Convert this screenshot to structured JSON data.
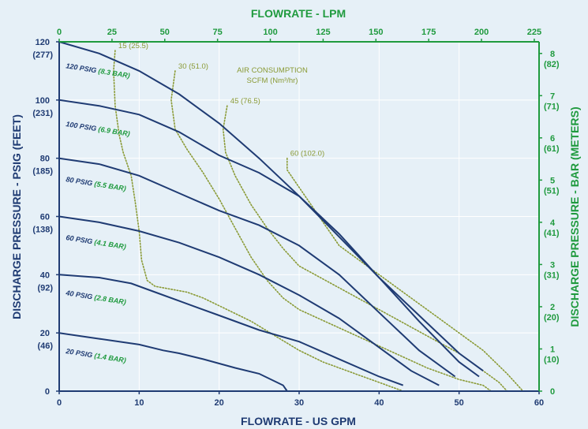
{
  "colors": {
    "background": "#e6f0f7",
    "primary_axis": "#1f3b73",
    "secondary_axis": "#1f9a3e",
    "air_curve": "#8a9a35",
    "grid": "#ffffff"
  },
  "chart_data": {
    "type": "line",
    "title": "",
    "xlabel": "FLOWRATE - US GPM",
    "ylabel": "DISCHARGE PRESSURE - PSIG (FEET)",
    "x2label": "FLOWRATE - LPM",
    "y2label": "DISCHARGE PRESSURE - BAR (METERS)",
    "xlim": [
      0,
      60
    ],
    "ylim": [
      0,
      120
    ],
    "grid": true,
    "x_ticks": [
      "0",
      "10",
      "20",
      "30",
      "40",
      "50",
      "60"
    ],
    "x_tick_values": [
      0,
      10,
      20,
      30,
      40,
      50,
      60
    ],
    "x2_ticks": [
      "0",
      "25",
      "50",
      "75",
      "100",
      "125",
      "150",
      "175",
      "200",
      "225"
    ],
    "x2_tick_values_gpm": [
      0,
      6.6,
      13.2,
      19.8,
      26.4,
      33.0,
      39.6,
      46.2,
      52.8,
      59.4
    ],
    "y_ticks": [
      {
        "value": 0,
        "main": "0",
        "sub": ""
      },
      {
        "value": 20,
        "main": "20",
        "sub": "(46)"
      },
      {
        "value": 40,
        "main": "40",
        "sub": "(92)"
      },
      {
        "value": 60,
        "main": "60",
        "sub": "(138)"
      },
      {
        "value": 80,
        "main": "80",
        "sub": "(185)"
      },
      {
        "value": 100,
        "main": "100",
        "sub": "(231)"
      },
      {
        "value": 120,
        "main": "120",
        "sub": "(277)"
      }
    ],
    "y2_ticks": [
      {
        "value_psi": 0,
        "main": "0",
        "sub": ""
      },
      {
        "value_psi": 14.5,
        "main": "1",
        "sub": "(10)"
      },
      {
        "value_psi": 29.0,
        "main": "2",
        "sub": "(20)"
      },
      {
        "value_psi": 43.5,
        "main": "3",
        "sub": "(31)"
      },
      {
        "value_psi": 58.0,
        "main": "4",
        "sub": "(41)"
      },
      {
        "value_psi": 72.5,
        "main": "5",
        "sub": "(51)"
      },
      {
        "value_psi": 87.0,
        "main": "6",
        "sub": "(61)"
      },
      {
        "value_psi": 101.5,
        "main": "7",
        "sub": "(71)"
      },
      {
        "value_psi": 116.0,
        "main": "8",
        "sub": "(82)"
      }
    ],
    "performance_curves": [
      {
        "psig_label": "120 PSIG",
        "bar_label": "(8.3 BAR)",
        "label_x": 0.8,
        "label_y": 111,
        "points": [
          [
            0,
            120
          ],
          [
            5,
            116
          ],
          [
            10,
            110
          ],
          [
            15,
            102
          ],
          [
            20,
            92
          ],
          [
            25,
            80
          ],
          [
            30,
            67
          ],
          [
            35,
            53
          ],
          [
            40,
            39
          ],
          [
            45,
            26
          ],
          [
            50,
            13
          ],
          [
            53,
            7
          ]
        ]
      },
      {
        "psig_label": "100 PSIG",
        "bar_label": "(6.9 BAR)",
        "label_x": 0.8,
        "label_y": 91,
        "points": [
          [
            0,
            100
          ],
          [
            5,
            98
          ],
          [
            10,
            95
          ],
          [
            15,
            89
          ],
          [
            20,
            81
          ],
          [
            25,
            75
          ],
          [
            30,
            67
          ],
          [
            35,
            54
          ],
          [
            40,
            39
          ],
          [
            45,
            24
          ],
          [
            50,
            10
          ],
          [
            52.5,
            5
          ]
        ]
      },
      {
        "psig_label": "80 PSIG",
        "bar_label": "(5.5 BAR)",
        "label_x": 0.8,
        "label_y": 72,
        "points": [
          [
            0,
            80
          ],
          [
            5,
            78
          ],
          [
            10,
            74
          ],
          [
            15,
            68
          ],
          [
            20,
            62
          ],
          [
            25,
            57
          ],
          [
            30,
            50
          ],
          [
            35,
            40
          ],
          [
            40,
            27
          ],
          [
            45,
            14
          ],
          [
            49.5,
            5
          ]
        ]
      },
      {
        "psig_label": "60 PSIG",
        "bar_label": "(4.1 BAR)",
        "label_x": 0.8,
        "label_y": 52,
        "points": [
          [
            0,
            60
          ],
          [
            5,
            58
          ],
          [
            10,
            55
          ],
          [
            15,
            51
          ],
          [
            20,
            46
          ],
          [
            25,
            40
          ],
          [
            30,
            33
          ],
          [
            35,
            25
          ],
          [
            40,
            15
          ],
          [
            44,
            7
          ],
          [
            47.5,
            2
          ]
        ]
      },
      {
        "psig_label": "40 PSIG",
        "bar_label": "(2.8 BAR)",
        "label_x": 0.8,
        "label_y": 33,
        "points": [
          [
            0,
            40
          ],
          [
            5,
            39
          ],
          [
            9,
            37
          ],
          [
            12,
            34
          ],
          [
            15,
            31
          ],
          [
            20,
            26
          ],
          [
            25,
            21
          ],
          [
            30,
            17
          ],
          [
            35,
            11
          ],
          [
            40,
            5
          ],
          [
            43,
            2
          ]
        ]
      },
      {
        "psig_label": "20 PSIG",
        "bar_label": "(1.4 BAR)",
        "label_x": 0.8,
        "label_y": 13,
        "points": [
          [
            0,
            20
          ],
          [
            5,
            18
          ],
          [
            10,
            16
          ],
          [
            13,
            14
          ],
          [
            15,
            13
          ],
          [
            18,
            11
          ],
          [
            22,
            8
          ],
          [
            25,
            6
          ],
          [
            28,
            2
          ],
          [
            28.5,
            0
          ]
        ]
      }
    ],
    "air_consumption": {
      "title_lines": [
        "AIR CONSUMPTION",
        "SCFM (Nm³/hr)"
      ],
      "curves": [
        {
          "label": "15 (25.5)",
          "points": [
            [
              7,
              117
            ],
            [
              6.8,
              110
            ],
            [
              7,
              98
            ],
            [
              7.5,
              88
            ],
            [
              8,
              82
            ],
            [
              9,
              74
            ],
            [
              9.5,
              65
            ],
            [
              10,
              55
            ],
            [
              10.3,
              45
            ],
            [
              11,
              38
            ],
            [
              12,
              36
            ],
            [
              14,
              35
            ],
            [
              16,
              34
            ],
            [
              18,
              32
            ],
            [
              21,
              28
            ],
            [
              24,
              24
            ],
            [
              27,
              19
            ],
            [
              30,
              14
            ],
            [
              33,
              10
            ],
            [
              37,
              6
            ],
            [
              40,
              3
            ],
            [
              42,
              1
            ],
            [
              43,
              0
            ]
          ]
        },
        {
          "label": "30 (51.0)",
          "points": [
            [
              14.5,
              110
            ],
            [
              14,
              100
            ],
            [
              14.5,
              90
            ],
            [
              16,
              83
            ],
            [
              18,
              75
            ],
            [
              20,
              66
            ],
            [
              22,
              56
            ],
            [
              24,
              46
            ],
            [
              26,
              38
            ],
            [
              28,
              32
            ],
            [
              30,
              28
            ],
            [
              34,
              23
            ],
            [
              38,
              18
            ],
            [
              42,
              13
            ],
            [
              46,
              8
            ],
            [
              50,
              4
            ],
            [
              53,
              2
            ],
            [
              54,
              0
            ]
          ]
        },
        {
          "label": "45 (76.5)",
          "points": [
            [
              21,
              98
            ],
            [
              20.5,
              90
            ],
            [
              20.8,
              82
            ],
            [
              22,
              74
            ],
            [
              24,
              64
            ],
            [
              26,
              56
            ],
            [
              28,
              49
            ],
            [
              30,
              43
            ],
            [
              34,
              37
            ],
            [
              38,
              31
            ],
            [
              42,
              25
            ],
            [
              46,
              19
            ],
            [
              50,
              13
            ],
            [
              53,
              7
            ],
            [
              55,
              3
            ],
            [
              56,
              0
            ]
          ]
        },
        {
          "label": "60 (102.0)",
          "points": [
            [
              28.5,
              80
            ],
            [
              28.5,
              76
            ],
            [
              29.5,
              72
            ],
            [
              31,
              66
            ],
            [
              33,
              58
            ],
            [
              35,
              50
            ],
            [
              38,
              44
            ],
            [
              41,
              38
            ],
            [
              44,
              32
            ],
            [
              47,
              26
            ],
            [
              50,
              20
            ],
            [
              53,
              14
            ],
            [
              56,
              6
            ],
            [
              58,
              0
            ]
          ]
        }
      ]
    }
  }
}
